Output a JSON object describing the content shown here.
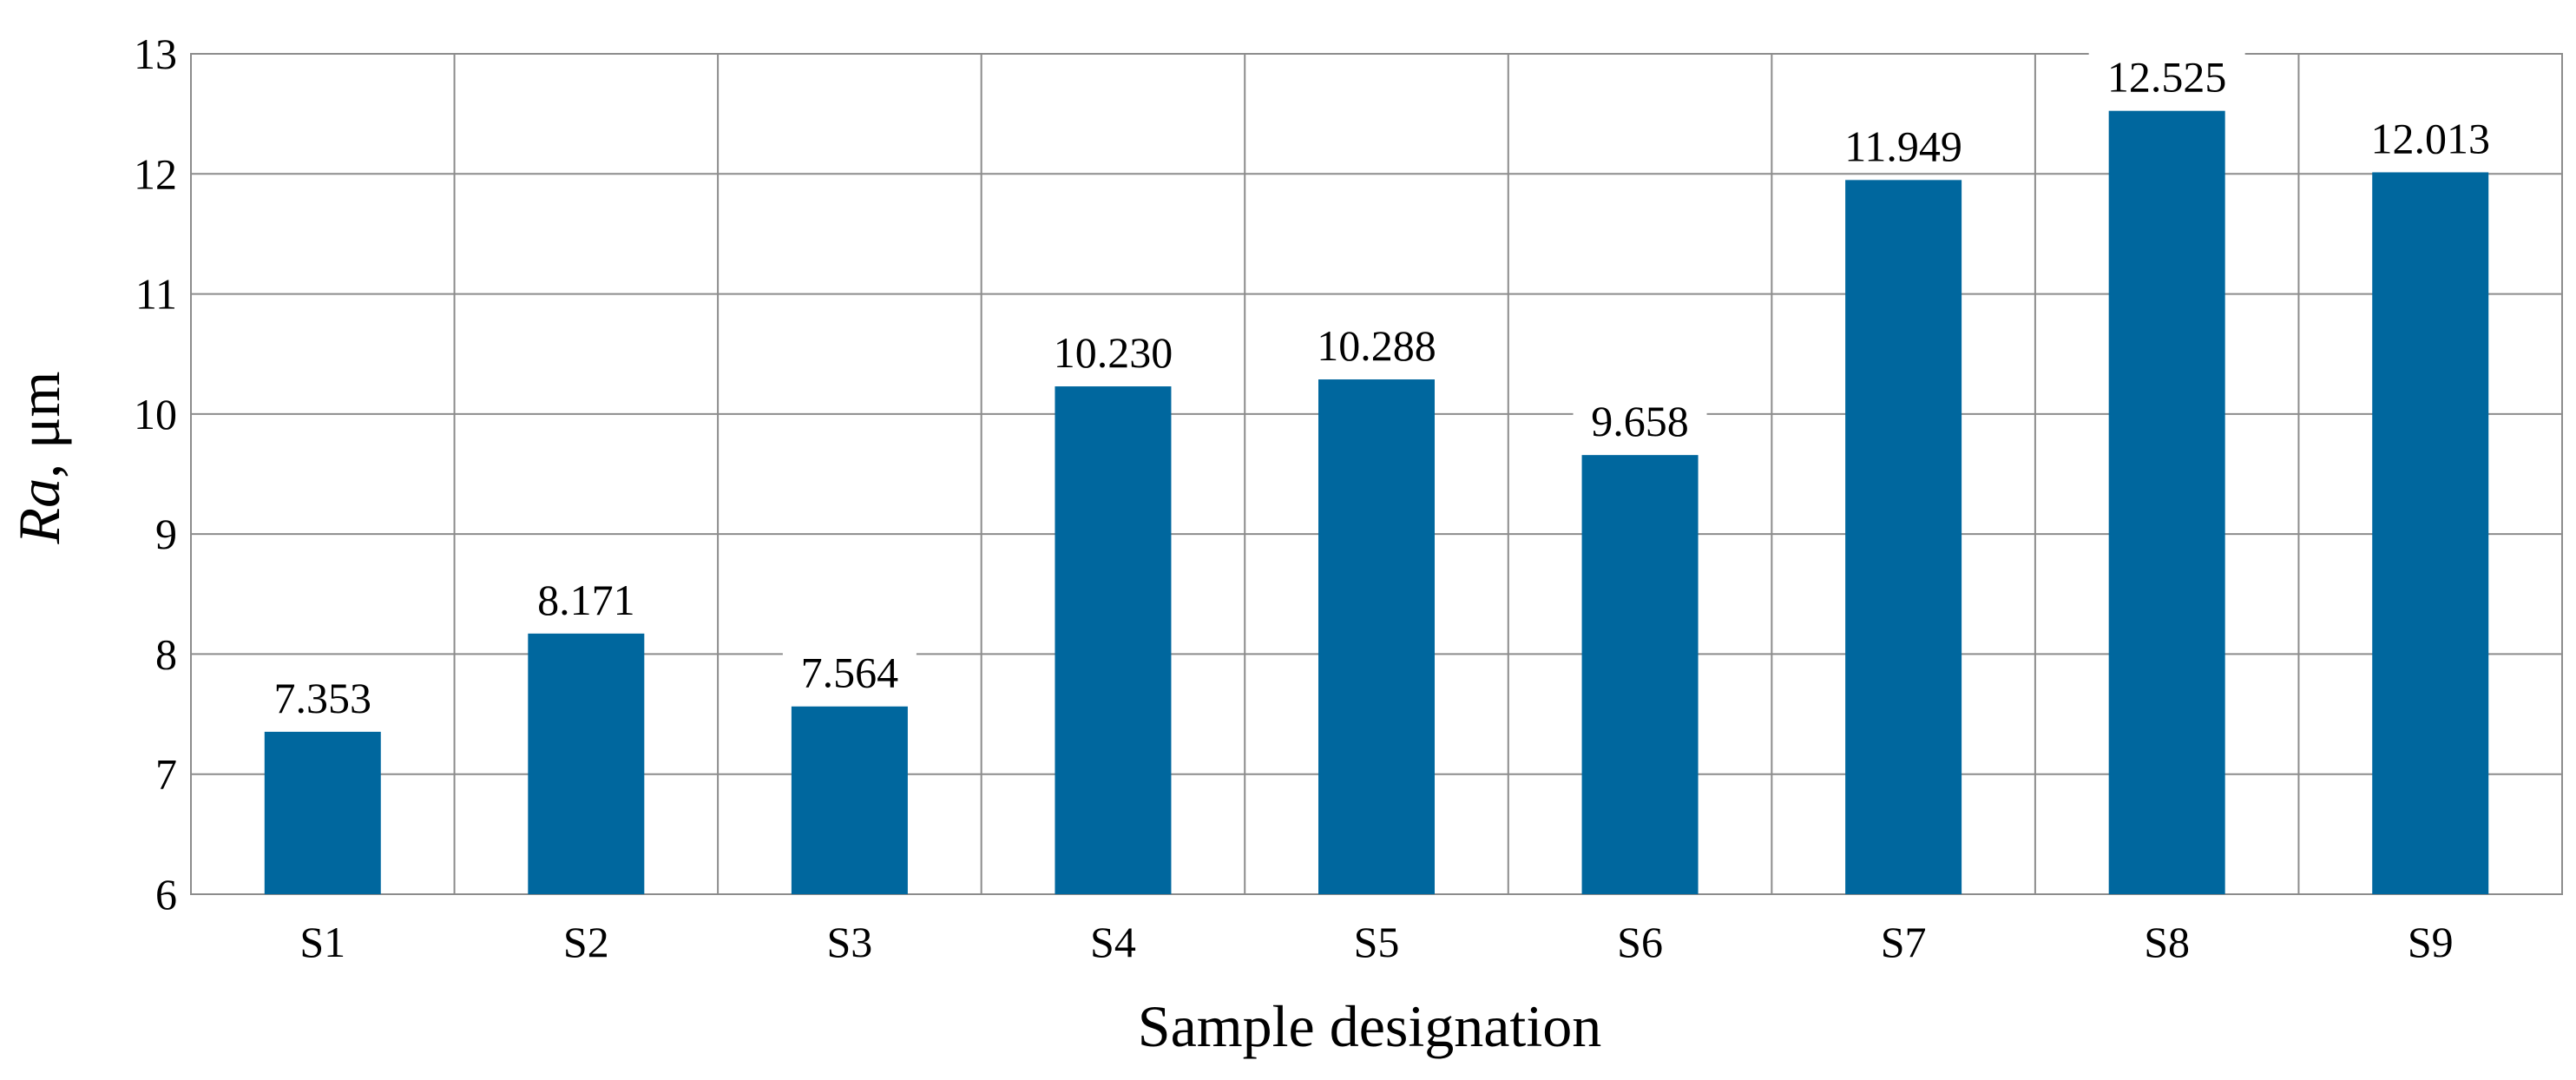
{
  "chart_data": {
    "type": "bar",
    "categories": [
      "S1",
      "S2",
      "S3",
      "S4",
      "S5",
      "S6",
      "S7",
      "S8",
      "S9"
    ],
    "values": [
      7.353,
      8.171,
      7.564,
      10.23,
      10.288,
      9.658,
      11.949,
      12.525,
      12.013
    ],
    "value_labels": [
      "7.353",
      "8.171",
      "7.564",
      "10.230",
      "10.288",
      "9.658",
      "11.949",
      "12.525",
      "12.013"
    ],
    "xlabel": "Sample designation",
    "ylabel_italic": "Ra",
    "ylabel_rest": ", μm",
    "ylim": [
      6,
      13
    ],
    "yticks": [
      6,
      7,
      8,
      9,
      10,
      11,
      12,
      13
    ],
    "grid": true,
    "legend": "none",
    "bar_color": "#00679e",
    "grid_color": "#8c8c8c"
  }
}
